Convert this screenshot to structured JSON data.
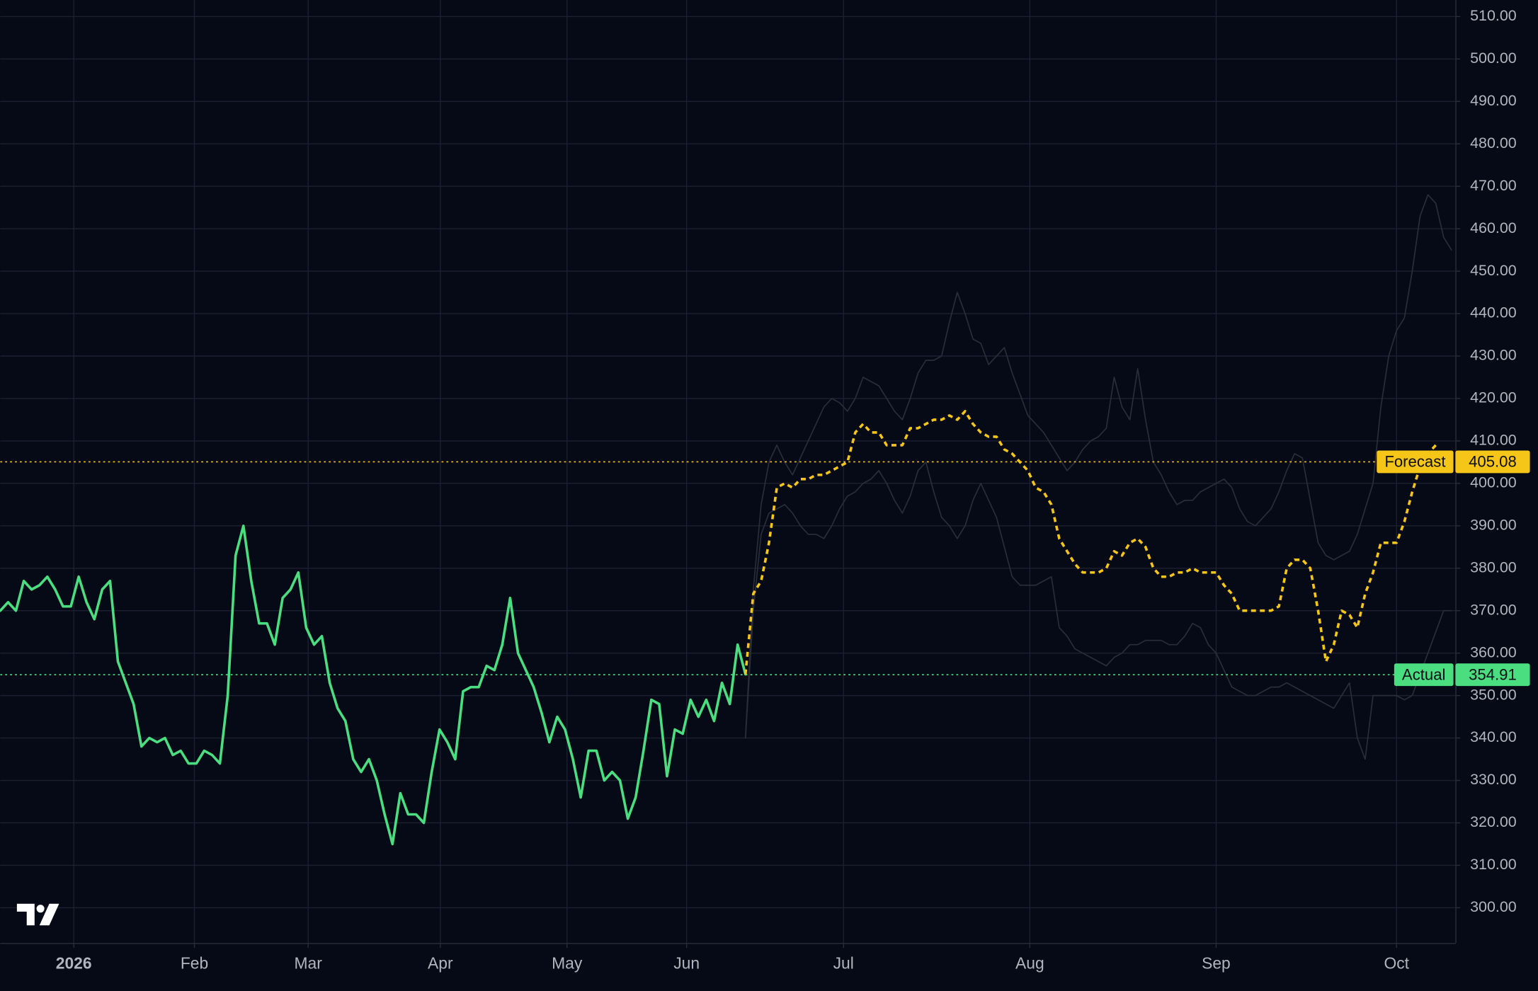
{
  "chart_data": {
    "type": "line",
    "xlim": [
      0,
      185.5
    ],
    "ylim": [
      291.7,
      513.9
    ],
    "grid": true,
    "background": "#060a16",
    "xticks": [
      {
        "value": 9.375,
        "label": "2026",
        "bold": true
      },
      {
        "value": 24.75,
        "label": "Feb"
      },
      {
        "value": 39.25,
        "label": "Mar"
      },
      {
        "value": 56.1,
        "label": "Apr"
      },
      {
        "value": 72.25,
        "label": "May"
      },
      {
        "value": 87.5,
        "label": "Jun"
      },
      {
        "value": 107.5,
        "label": "Jul"
      },
      {
        "value": 131.25,
        "label": "Aug"
      },
      {
        "value": 155,
        "label": "Sep"
      },
      {
        "value": 178,
        "label": "Oct"
      }
    ],
    "yticks": [
      {
        "value": 300,
        "label": "300.00"
      },
      {
        "value": 310,
        "label": "310.00"
      },
      {
        "value": 320,
        "label": "320.00"
      },
      {
        "value": 330,
        "label": "330.00"
      },
      {
        "value": 340,
        "label": "340.00"
      },
      {
        "value": 350,
        "label": "350.00"
      },
      {
        "value": 360,
        "label": "360.00"
      },
      {
        "value": 370,
        "label": "370.00"
      },
      {
        "value": 380,
        "label": "380.00"
      },
      {
        "value": 390,
        "label": "390.00"
      },
      {
        "value": 400,
        "label": "400.00"
      },
      {
        "value": 410,
        "label": "410.00"
      },
      {
        "value": 420,
        "label": "420.00"
      },
      {
        "value": 430,
        "label": "430.00"
      },
      {
        "value": 440,
        "label": "440.00"
      },
      {
        "value": 450,
        "label": "450.00"
      },
      {
        "value": 460,
        "label": "460.00"
      },
      {
        "value": 470,
        "label": "470.00"
      },
      {
        "value": 480,
        "label": "480.00"
      },
      {
        "value": 490,
        "label": "490.00"
      },
      {
        "value": 500,
        "label": "500.00"
      },
      {
        "value": 510,
        "label": "510.00"
      }
    ],
    "series": [
      {
        "color": "#2a2e39",
        "width": 1.2,
        "values": [
          null,
          null,
          null,
          null,
          null,
          null,
          null,
          null,
          null,
          null,
          null,
          null,
          null,
          null,
          null,
          null,
          null,
          null,
          null,
          null,
          null,
          null,
          null,
          null,
          null,
          null,
          null,
          null,
          null,
          null,
          null,
          null,
          null,
          null,
          null,
          null,
          null,
          null,
          null,
          null,
          null,
          null,
          null,
          null,
          null,
          null,
          null,
          null,
          null,
          null,
          null,
          null,
          null,
          null,
          null,
          null,
          null,
          null,
          null,
          null,
          null,
          null,
          null,
          null,
          null,
          null,
          null,
          null,
          null,
          null,
          null,
          null,
          null,
          null,
          null,
          null,
          null,
          null,
          null,
          null,
          null,
          null,
          null,
          null,
          null,
          null,
          null,
          null,
          null,
          null,
          null,
          null,
          null,
          null,
          null,
          340,
          375,
          395,
          405,
          409,
          405,
          402,
          406,
          410,
          414,
          418,
          420,
          419,
          417,
          420,
          425,
          424,
          423,
          420,
          417,
          415,
          420,
          426,
          429,
          429,
          430,
          438,
          445,
          440,
          434,
          433,
          428,
          430,
          432,
          426,
          421,
          416,
          414,
          412,
          409,
          406,
          403,
          405,
          408,
          410,
          411,
          413,
          425,
          418,
          415,
          427,
          415,
          405,
          402,
          398,
          395,
          396,
          396,
          398,
          399,
          400,
          401,
          399,
          394,
          391,
          390,
          392,
          394,
          398,
          403,
          407,
          406,
          396,
          386,
          383,
          382,
          383,
          384,
          388,
          394,
          400,
          418,
          430,
          436,
          439,
          450,
          463,
          468,
          466,
          458,
          455
        ]
      },
      {
        "color": "#2a2e39",
        "width": 1.2,
        "values": [
          null,
          null,
          null,
          null,
          null,
          null,
          null,
          null,
          null,
          null,
          null,
          null,
          null,
          null,
          null,
          null,
          null,
          null,
          null,
          null,
          null,
          null,
          null,
          null,
          null,
          null,
          null,
          null,
          null,
          null,
          null,
          null,
          null,
          null,
          null,
          null,
          null,
          null,
          null,
          null,
          null,
          null,
          null,
          null,
          null,
          null,
          null,
          null,
          null,
          null,
          null,
          null,
          null,
          null,
          null,
          null,
          null,
          null,
          null,
          null,
          null,
          null,
          null,
          null,
          null,
          null,
          null,
          null,
          null,
          null,
          null,
          null,
          null,
          null,
          null,
          null,
          null,
          null,
          null,
          null,
          null,
          null,
          null,
          null,
          null,
          null,
          null,
          null,
          null,
          null,
          null,
          null,
          null,
          null,
          null,
          340,
          370,
          388,
          393,
          394,
          395,
          393,
          390,
          388,
          388,
          387,
          390,
          394,
          397,
          398,
          400,
          401,
          403,
          400,
          396,
          393,
          397,
          403,
          405,
          398,
          392,
          390,
          387,
          390,
          396,
          400,
          396,
          392,
          385,
          378,
          376,
          376,
          376,
          377,
          378,
          366,
          364,
          361,
          360,
          359,
          358,
          357,
          359,
          360,
          362,
          362,
          363,
          363,
          363,
          362,
          362,
          364,
          367,
          366,
          362,
          360,
          356,
          352,
          351,
          350,
          350,
          351,
          352,
          352,
          353,
          352,
          351,
          350,
          349,
          348,
          347,
          350,
          353,
          340,
          335,
          350,
          350,
          350,
          350,
          349,
          350,
          355,
          360,
          365,
          370,
          370
        ]
      },
      {
        "name": "Actual",
        "color": "#4ade80",
        "width": 2.6,
        "marker_value": 354.91,
        "values": [
          370,
          372,
          370,
          377,
          375,
          376,
          378,
          375,
          371,
          371,
          378,
          372,
          368,
          375,
          377,
          358,
          353,
          348,
          338,
          340,
          339,
          340,
          336,
          337,
          334,
          334,
          337,
          336,
          334,
          350,
          383,
          390,
          377,
          367,
          367,
          362,
          373,
          375,
          379,
          366,
          362,
          364,
          353,
          347,
          344,
          335,
          332,
          335,
          330,
          322,
          315,
          327,
          322,
          322,
          320,
          332,
          342,
          339,
          335,
          351,
          352,
          352,
          357,
          356,
          362,
          373,
          360,
          356,
          352,
          346,
          339,
          345,
          342,
          335,
          326,
          337,
          337,
          330,
          332,
          330,
          321,
          326,
          337,
          349,
          348,
          331,
          342,
          341,
          349,
          345,
          349,
          344,
          353,
          348,
          362,
          355,
          null,
          null,
          null,
          null,
          null,
          null,
          null,
          null,
          null,
          null,
          null,
          null,
          null,
          null,
          null,
          null,
          null,
          null,
          null,
          null,
          null,
          null,
          null,
          null,
          null,
          null,
          null,
          null,
          null,
          null,
          null,
          null,
          null,
          null,
          null,
          null,
          null,
          null,
          null,
          null,
          null,
          null,
          null,
          null,
          null,
          null,
          null,
          null,
          null,
          null,
          null,
          null,
          null,
          null,
          null,
          null,
          null,
          null,
          null,
          null,
          null,
          null,
          null,
          null,
          null,
          null,
          null,
          null,
          null,
          null,
          null,
          null,
          null,
          null,
          null,
          null,
          null,
          null,
          null,
          null,
          null,
          null,
          null,
          null,
          null,
          null,
          null,
          null,
          null,
          null
        ]
      },
      {
        "name": "Forecast",
        "color": "#f5c518",
        "width": 2.6,
        "dash": true,
        "marker_value": 405.08,
        "values": [
          null,
          null,
          null,
          null,
          null,
          null,
          null,
          null,
          null,
          null,
          null,
          null,
          null,
          null,
          null,
          null,
          null,
          null,
          null,
          null,
          null,
          null,
          null,
          null,
          null,
          null,
          null,
          null,
          null,
          null,
          null,
          null,
          null,
          null,
          null,
          null,
          null,
          null,
          null,
          null,
          null,
          null,
          null,
          null,
          null,
          null,
          null,
          null,
          null,
          null,
          null,
          null,
          null,
          null,
          null,
          null,
          null,
          null,
          null,
          null,
          null,
          null,
          null,
          null,
          null,
          null,
          null,
          null,
          null,
          null,
          null,
          null,
          null,
          null,
          null,
          null,
          null,
          null,
          null,
          null,
          null,
          null,
          null,
          null,
          null,
          null,
          null,
          null,
          null,
          null,
          null,
          null,
          null,
          null,
          null,
          355,
          374,
          377,
          386,
          399,
          400,
          399,
          401,
          401,
          402,
          402,
          403,
          404,
          405,
          412,
          414,
          412,
          412,
          409,
          409,
          409,
          413,
          413,
          414,
          415,
          415,
          416,
          415,
          417,
          414,
          412,
          411,
          411,
          408,
          407,
          405,
          403,
          399,
          398,
          395,
          387,
          384,
          381,
          379,
          379,
          379,
          380,
          384,
          383,
          386,
          387,
          385,
          380,
          378,
          378,
          379,
          379,
          380,
          379,
          379,
          379,
          376,
          374,
          370,
          370,
          370,
          370,
          370,
          371,
          380,
          382,
          382,
          380,
          370,
          358,
          362,
          370,
          369,
          366,
          374,
          379,
          386,
          386,
          386,
          391,
          398,
          404,
          407,
          409,
          null,
          null
        ]
      }
    ]
  }
}
